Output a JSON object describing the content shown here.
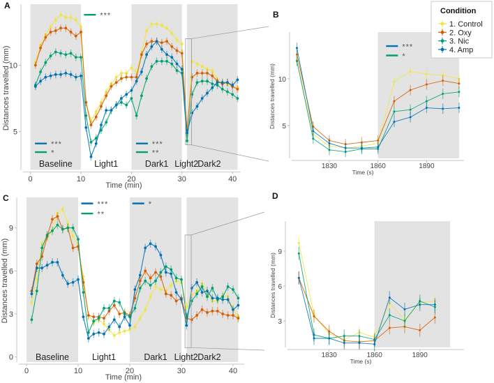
{
  "legend": {
    "title": "Condition",
    "entries": [
      {
        "label": "1. Control",
        "color": "#f0e442"
      },
      {
        "label": "2. Oxy",
        "color": "#d55e00"
      },
      {
        "label": "3. Nic",
        "color": "#009e73"
      },
      {
        "label": "4. Amp",
        "color": "#0072b2"
      }
    ]
  },
  "chart_data": [
    {
      "id": "A",
      "type": "line",
      "panel_label": "A",
      "xlabel": "Time (min)",
      "ylabel": "Distances travelled (mm)",
      "xlim": [
        0,
        41
      ],
      "ylim": [
        3.3,
        14.5
      ],
      "xticks": [
        0,
        10,
        20,
        30,
        40
      ],
      "yticks": [
        5,
        10
      ],
      "grid": false,
      "shaded_periods": [
        [
          0,
          10
        ],
        [
          20,
          30
        ],
        [
          31,
          41
        ]
      ],
      "period_labels": [
        {
          "text": "Baseline",
          "x": 5
        },
        {
          "text": "Light1",
          "x": 15
        },
        {
          "text": "Dark1",
          "x": 25
        },
        {
          "text": "Light2",
          "x": 30.9
        },
        {
          "text": "Dark2",
          "x": 35.4
        }
      ],
      "significance": [
        {
          "color": "#009e73",
          "stars": "***",
          "x": 10.6,
          "y": 13.8
        },
        {
          "color": "#0072b2",
          "stars": "***",
          "x": 0.9,
          "y": 4.1
        },
        {
          "color": "#009e73",
          "stars": "*",
          "x": 0.9,
          "y": 3.45
        },
        {
          "color": "#0072b2",
          "stars": "***",
          "x": 20.9,
          "y": 4.1
        },
        {
          "color": "#009e73",
          "stars": "**",
          "x": 20.9,
          "y": 3.45
        }
      ],
      "zoom_box": {
        "x": [
          30.7,
          31.9
        ],
        "y": [
          4.0,
          12.0
        ]
      },
      "x": [
        1,
        2,
        3,
        4,
        5,
        6,
        7,
        8,
        9,
        10,
        11,
        12,
        13,
        14,
        15,
        16,
        17,
        18,
        19,
        20,
        21,
        22,
        23,
        24,
        25,
        26,
        27,
        28,
        29,
        30,
        31,
        32,
        33,
        34,
        35,
        36,
        37,
        38,
        39,
        40,
        41
      ],
      "series": [
        {
          "name": "1. Control",
          "color": "#f0e442",
          "values": [
            10.2,
            11.5,
            12.3,
            12.9,
            13.4,
            13.8,
            13.6,
            13.6,
            13.4,
            12.9,
            7.2,
            5.8,
            6.5,
            7.2,
            8.0,
            8.6,
            9.1,
            9.4,
            9.4,
            9.8,
            9.5,
            10.9,
            12.6,
            13.1,
            13.1,
            13.0,
            12.8,
            12.4,
            11.9,
            11.6,
            4.7,
            10.3,
            10.1,
            9.9,
            9.7,
            9.6,
            8.9,
            8.7,
            8.6,
            8.4,
            8.3
          ]
        },
        {
          "name": "2. Oxy",
          "color": "#d55e00",
          "values": [
            10.0,
            11.3,
            12.1,
            12.5,
            12.6,
            12.8,
            12.8,
            12.5,
            12.2,
            12.5,
            7.2,
            5.5,
            6.1,
            6.9,
            7.7,
            8.4,
            8.7,
            9.0,
            9.1,
            9.1,
            9.1,
            10.8,
            11.6,
            11.8,
            11.8,
            11.7,
            11.8,
            11.4,
            11.1,
            10.9,
            5.1,
            9.1,
            9.4,
            9.4,
            9.4,
            9.2,
            8.8,
            8.6,
            8.7,
            8.4,
            8.2
          ]
        },
        {
          "name": "3. Nic",
          "color": "#009e73",
          "values": [
            8.5,
            9.5,
            10.2,
            10.7,
            11.0,
            10.9,
            10.8,
            10.9,
            10.6,
            10.6,
            6.2,
            4.2,
            4.5,
            5.1,
            5.7,
            6.6,
            7.0,
            7.2,
            7.0,
            7.5,
            6.2,
            7.7,
            9.0,
            9.9,
            10.3,
            10.3,
            10.3,
            10.1,
            9.6,
            9.4,
            4.3,
            7.8,
            8.7,
            8.8,
            8.8,
            8.6,
            8.5,
            8.2,
            8.0,
            7.8,
            7.5
          ]
        },
        {
          "name": "4. Amp",
          "color": "#0072b2",
          "values": [
            8.4,
            8.8,
            9.1,
            9.2,
            9.3,
            9.3,
            9.4,
            9.3,
            9.1,
            9.2,
            5.3,
            3.1,
            4.1,
            5.5,
            6.6,
            6.6,
            7.0,
            7.5,
            7.8,
            8.1,
            8.8,
            9.5,
            10.8,
            11.4,
            11.8,
            11.2,
            10.8,
            10.6,
            10.1,
            9.7,
            4.9,
            6.4,
            6.9,
            7.5,
            7.9,
            8.3,
            8.7,
            8.7,
            8.7,
            8.5,
            8.9
          ]
        }
      ]
    },
    {
      "id": "B",
      "type": "line",
      "panel_label": "B",
      "xlabel": "Time (s)",
      "ylabel": "Distances travelled (mm)",
      "xlim": [
        1808,
        1914
      ],
      "ylim": [
        1.2,
        14.6
      ],
      "xticks": [
        1830,
        1860,
        1890
      ],
      "yticks": [
        5,
        10
      ],
      "grid": false,
      "shaded_periods": [
        [
          1860,
          1910
        ]
      ],
      "significance": [
        {
          "color": "#0072b2",
          "stars": "***",
          "x": 1865,
          "y": 13.5
        },
        {
          "color": "#009e73",
          "stars": "*",
          "x": 1865,
          "y": 12.5
        }
      ],
      "x": [
        1810,
        1820,
        1830,
        1840,
        1850,
        1860,
        1870,
        1880,
        1890,
        1900,
        1910
      ],
      "series": [
        {
          "name": "1. Control",
          "color": "#f0e442",
          "values": [
            12.0,
            4.1,
            2.8,
            2.6,
            2.8,
            3.1,
            9.7,
            10.8,
            10.5,
            10.4,
            10.0
          ]
        },
        {
          "name": "2. Oxy",
          "color": "#d55e00",
          "values": [
            12.6,
            4.9,
            3.4,
            3.0,
            3.2,
            3.4,
            7.6,
            8.8,
            9.4,
            9.8,
            9.5
          ]
        },
        {
          "name": "3. Nic",
          "color": "#009e73",
          "values": [
            11.9,
            3.6,
            2.4,
            2.2,
            2.5,
            2.5,
            6.5,
            6.7,
            7.6,
            8.4,
            8.6
          ]
        },
        {
          "name": "4. Amp",
          "color": "#0072b2",
          "values": [
            13.3,
            4.4,
            3.1,
            2.6,
            2.6,
            2.7,
            5.4,
            5.9,
            6.9,
            6.8,
            6.9
          ]
        }
      ]
    },
    {
      "id": "C",
      "type": "line",
      "panel_label": "C",
      "xlabel": "Time (min)",
      "ylabel": "Distances travelled (mm)",
      "xlim": [
        0,
        41
      ],
      "ylim": [
        -0.5,
        11.3
      ],
      "xticks": [
        0,
        10,
        20,
        30,
        40
      ],
      "yticks": [
        0,
        3,
        6,
        9
      ],
      "grid": false,
      "shaded_periods": [
        [
          0,
          10
        ],
        [
          20,
          30
        ],
        [
          31,
          41
        ]
      ],
      "period_labels": [
        {
          "text": "Baseline",
          "x": 5
        },
        {
          "text": "Light1",
          "x": 15
        },
        {
          "text": "Dark1",
          "x": 25
        },
        {
          "text": "Light2",
          "x": 30.9
        },
        {
          "text": "Dark2",
          "x": 35.4
        }
      ],
      "significance": [
        {
          "color": "#0072b2",
          "stars": "***",
          "x": 10.6,
          "y": 10.7
        },
        {
          "color": "#009e73",
          "stars": "**",
          "x": 10.6,
          "y": 10.0
        },
        {
          "color": "#0072b2",
          "stars": "*",
          "x": 20.5,
          "y": 10.7
        }
      ],
      "zoom_box": {
        "x": [
          30.7,
          31.9
        ],
        "y": [
          0.65,
          8.5
        ]
      },
      "x": [
        1,
        2,
        3,
        4,
        5,
        6,
        7,
        8,
        9,
        10,
        11,
        12,
        13,
        14,
        15,
        16,
        17,
        18,
        19,
        20,
        21,
        22,
        23,
        24,
        25,
        26,
        27,
        28,
        29,
        30,
        31,
        32,
        33,
        34,
        35,
        36,
        37,
        38,
        39,
        40,
        41
      ],
      "series": [
        {
          "name": "1. Control",
          "color": "#f0e442",
          "values": [
            3.8,
            5.4,
            7.9,
            8.3,
            8.8,
            10.0,
            10.3,
            9.3,
            8.4,
            7.8,
            5.6,
            2.9,
            2.4,
            2.6,
            2.3,
            1.9,
            1.5,
            1.7,
            1.8,
            1.9,
            2.1,
            2.7,
            3.3,
            4.2,
            4.9,
            4.7,
            4.6,
            5.0,
            5.3,
            5.2,
            3.5,
            4.3,
            4.6,
            5.1,
            4.5,
            3.9,
            3.9,
            4.3,
            4.2,
            3.4,
            2.8
          ]
        },
        {
          "name": "2. Oxy",
          "color": "#d55e00",
          "values": [
            4.6,
            6.5,
            7.0,
            8.4,
            9.6,
            9.8,
            8.9,
            9.0,
            7.6,
            7.7,
            5.2,
            2.9,
            2.8,
            2.8,
            2.7,
            3.2,
            3.6,
            3.0,
            3.1,
            2.9,
            4.1,
            5.3,
            6.0,
            5.5,
            5.9,
            5.6,
            4.4,
            4.3,
            3.9,
            4.1,
            2.7,
            2.6,
            2.9,
            3.3,
            3.1,
            3.2,
            3.2,
            3.0,
            2.9,
            2.9,
            2.7
          ]
        },
        {
          "name": "3. Nic",
          "color": "#009e73",
          "values": [
            2.6,
            4.6,
            7.6,
            8.5,
            8.8,
            9.2,
            8.9,
            9.0,
            9.0,
            8.2,
            4.5,
            1.7,
            2.5,
            2.7,
            3.4,
            3.4,
            3.9,
            3.8,
            3.0,
            2.8,
            3.4,
            4.8,
            5.3,
            5.0,
            5.3,
            5.9,
            6.3,
            6.1,
            5.5,
            5.4,
            2.8,
            3.9,
            4.4,
            4.9,
            4.2,
            4.8,
            4.0,
            4.2,
            4.9,
            4.7,
            4.1
          ]
        },
        {
          "name": "4. Amp",
          "color": "#0072b2",
          "values": [
            4.4,
            6.2,
            6.2,
            6.4,
            6.6,
            6.6,
            5.7,
            5.1,
            5.2,
            5.4,
            2.8,
            1.3,
            1.6,
            1.7,
            1.6,
            2.1,
            2.6,
            2.1,
            2.8,
            2.2,
            4.7,
            5.7,
            7.6,
            7.9,
            7.7,
            7.1,
            5.9,
            5.8,
            4.5,
            4.0,
            2.2,
            4.8,
            5.2,
            4.5,
            4.6,
            4.1,
            4.1,
            4.0,
            4.0,
            3.3,
            3.6
          ]
        }
      ]
    },
    {
      "id": "D",
      "type": "line",
      "panel_label": "D",
      "xlabel": "Time (s)",
      "ylabel": "Distances travelled (mm)",
      "xlim": [
        1806,
        1918
      ],
      "ylim": [
        0.5,
        11.4
      ],
      "xticks": [
        1830,
        1860,
        1890
      ],
      "yticks": [
        3,
        6,
        9
      ],
      "grid": false,
      "shaded_periods": [
        [
          1860,
          1910
        ]
      ],
      "x": [
        1810,
        1820,
        1830,
        1840,
        1850,
        1860,
        1870,
        1880,
        1890,
        1900
      ],
      "series": [
        {
          "name": "1. Control",
          "color": "#f0e442",
          "values": [
            9.7,
            3.5,
            1.9,
            1.4,
            2.0,
            1.6,
            4.5,
            3.1,
            4.6,
            4.7
          ]
        },
        {
          "name": "2. Oxy",
          "color": "#d55e00",
          "values": [
            6.7,
            3.4,
            2.1,
            1.3,
            1.2,
            1.3,
            2.4,
            2.5,
            2.2,
            3.3
          ]
        },
        {
          "name": "3. Nic",
          "color": "#009e73",
          "values": [
            8.8,
            1.8,
            1.5,
            1.7,
            1.7,
            1.4,
            3.5,
            3.0,
            4.7,
            4.2
          ]
        },
        {
          "name": "4. Amp",
          "color": "#0072b2",
          "values": [
            6.7,
            1.5,
            1.5,
            1.1,
            1.1,
            1.0,
            5.0,
            4.0,
            4.4,
            4.4
          ]
        }
      ]
    }
  ]
}
